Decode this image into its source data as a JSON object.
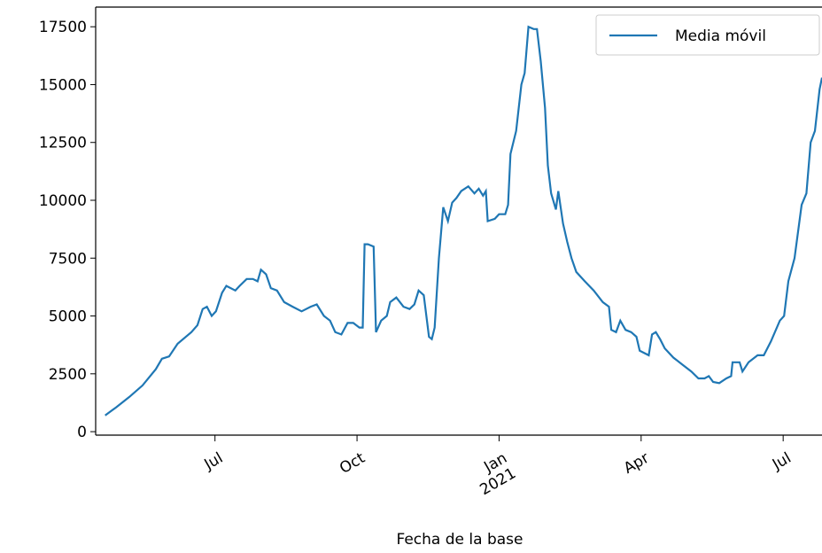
{
  "chart_data": {
    "type": "line",
    "xlabel": "Fecha de la base",
    "x": [
      -8.32,
      -8.09,
      -7.81,
      -7.53,
      -7.25,
      -7.12,
      -6.97,
      -6.79,
      -6.5,
      -6.37,
      -6.26,
      -6.17,
      -6.07,
      -5.98,
      -5.85,
      -5.76,
      -5.57,
      -5.48,
      -5.33,
      -5.2,
      -5.1,
      -5.03,
      -4.92,
      -4.82,
      -4.69,
      -4.54,
      -4.36,
      -4.17,
      -3.98,
      -3.85,
      -3.7,
      -3.57,
      -3.46,
      -3.33,
      -3.2,
      -3.08,
      -2.95,
      -2.88,
      -2.84,
      -2.77,
      -2.65,
      -2.6,
      -2.49,
      -2.37,
      -2.3,
      -2.17,
      -2.02,
      -1.89,
      -1.79,
      -1.7,
      -1.59,
      -1.48,
      -1.42,
      -1.36,
      -1.27,
      -1.18,
      -1.08,
      -0.99,
      -0.9,
      -0.8,
      -0.65,
      -0.52,
      -0.43,
      -0.34,
      -0.28,
      -0.24,
      -0.09,
      0,
      0.13,
      0.19,
      0.24,
      0.36,
      0.47,
      0.54,
      0.62,
      0.73,
      0.8,
      0.88,
      0.97,
      1.03,
      1.1,
      1.2,
      1.25,
      1.35,
      1.44,
      1.53,
      1.63,
      1.81,
      2.0,
      2.19,
      2.32,
      2.37,
      2.47,
      2.56,
      2.67,
      2.79,
      2.9,
      2.97,
      3.16,
      3.23,
      3.31,
      3.4,
      3.5,
      3.68,
      3.87,
      4.06,
      4.21,
      4.34,
      4.43,
      4.52,
      4.65,
      4.8,
      4.9,
      4.93,
      5.08,
      5.14,
      5.27,
      5.46,
      5.59,
      5.74,
      5.93,
      6.02,
      6.11,
      6.24,
      6.39,
      6.49,
      6.58,
      6.67,
      6.77,
      6.82
    ],
    "series": [
      {
        "name": "Media móvil",
        "color": "#1f77b4",
        "values": [
          700,
          1050,
          1500,
          2000,
          2700,
          3150,
          3250,
          3800,
          4300,
          4600,
          5300,
          5400,
          5000,
          5200,
          6000,
          6300,
          6100,
          6300,
          6600,
          6600,
          6500,
          7000,
          6800,
          6200,
          6100,
          5600,
          5400,
          5200,
          5400,
          5500,
          5000,
          4800,
          4300,
          4200,
          4700,
          4700,
          4500,
          4500,
          8100,
          8100,
          8000,
          4300,
          4800,
          5000,
          5600,
          5800,
          5400,
          5300,
          5500,
          6100,
          5900,
          4100,
          4000,
          4500,
          7500,
          9700,
          9100,
          9900,
          10100,
          10400,
          10600,
          10300,
          10500,
          10200,
          10400,
          9100,
          9200,
          9400,
          9400,
          9800,
          12000,
          13000,
          15000,
          15500,
          17500,
          17400,
          17400,
          16000,
          14000,
          11500,
          10300,
          9600,
          10400,
          9000,
          8200,
          7500,
          6900,
          6500,
          6100,
          5600,
          5400,
          4400,
          4300,
          4800,
          4400,
          4300,
          4100,
          3500,
          3300,
          4200,
          4300,
          4000,
          3600,
          3200,
          2900,
          2600,
          2300,
          2300,
          2400,
          2150,
          2100,
          2300,
          2400,
          3000,
          3000,
          2600,
          3000,
          3300,
          3300,
          3900,
          4800,
          5000,
          6500,
          7500,
          9800,
          10300,
          12500,
          13000,
          14800,
          15300
        ]
      }
    ],
    "xlim": [
      -8.52,
      6.82
    ],
    "xticks": [
      {
        "value": -6,
        "label": "Jul"
      },
      {
        "value": -3,
        "label": "Oct"
      },
      {
        "value": 0,
        "label": "Jan\n2021"
      },
      {
        "value": 3,
        "label": "Apr"
      },
      {
        "value": 6,
        "label": "Jul"
      }
    ],
    "ylim": [
      -150,
      18350
    ],
    "yticks": [
      0,
      2500,
      5000,
      7500,
      10000,
      12500,
      15000,
      17500
    ],
    "legend": "upper right"
  }
}
